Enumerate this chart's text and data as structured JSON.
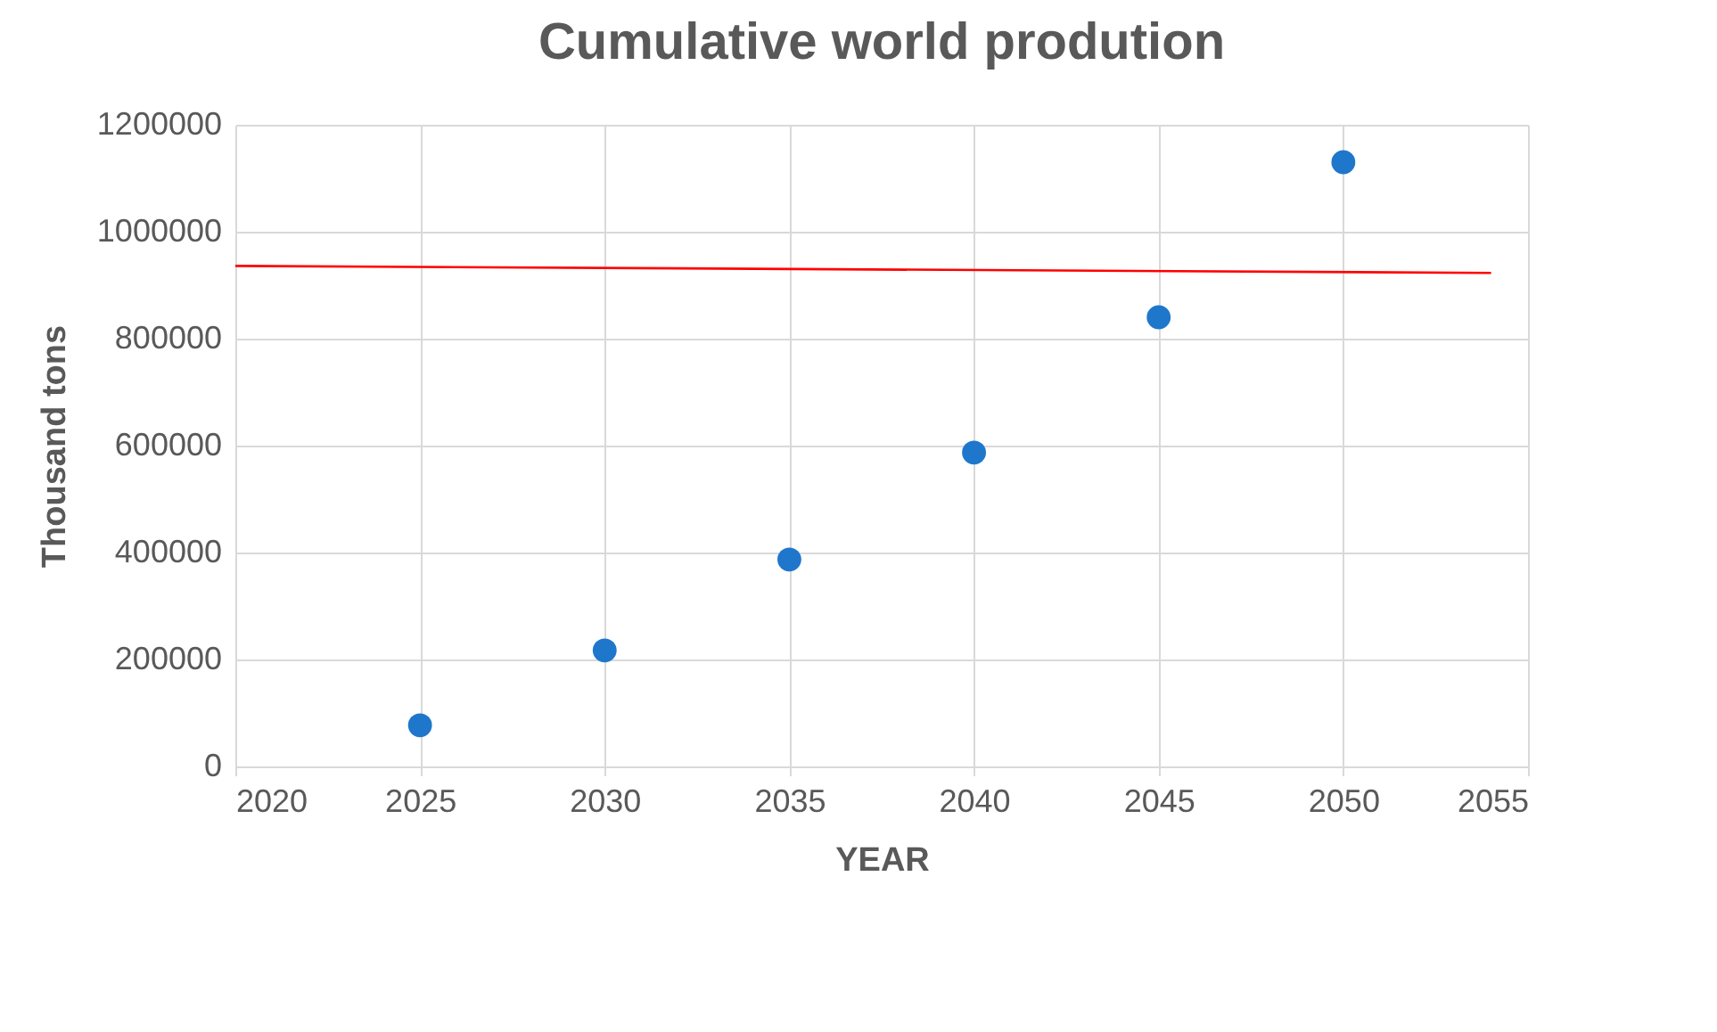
{
  "chart_data": {
    "type": "scatter",
    "title": "Cumulative world prodution",
    "xlabel": "YEAR",
    "ylabel": "Thousand tons",
    "x": [
      2025,
      2030,
      2035,
      2040,
      2045,
      2050
    ],
    "series": [
      {
        "color": "#1f77cc",
        "marker": "circle",
        "values": [
          77000,
          217000,
          387000,
          587000,
          840000,
          1130000
        ]
      },
      {
        "type": "line",
        "color": "#ff0000",
        "x": [
          2020,
          2054
        ],
        "values": [
          936000,
          923000
        ]
      }
    ],
    "xlim": [
      2020,
      2055
    ],
    "xticks": [
      2020,
      2025,
      2030,
      2035,
      2040,
      2045,
      2050,
      2055
    ],
    "ylim": [
      0,
      1200000
    ],
    "yticks": [
      0,
      200000,
      400000,
      600000,
      800000,
      1000000,
      1200000
    ],
    "grid": true
  }
}
